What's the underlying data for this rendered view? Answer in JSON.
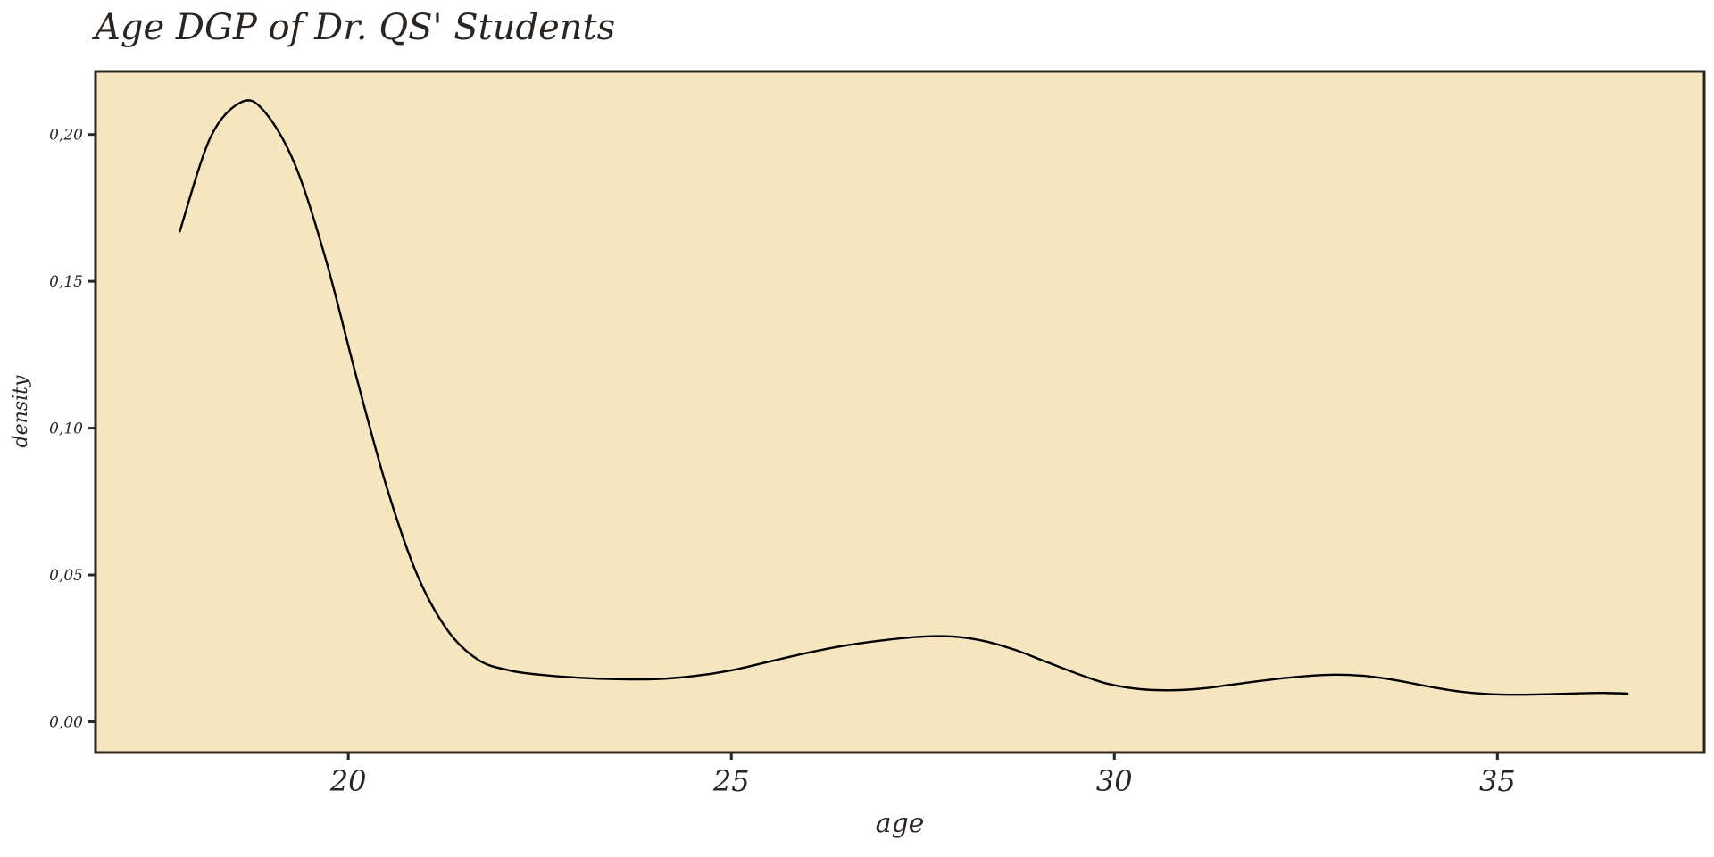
{
  "chart_data": {
    "type": "line",
    "title": "Age DGP of Dr. QS' Students",
    "xlabel": "age",
    "ylabel": "density",
    "xlim": [
      16.7,
      37.7
    ],
    "ylim": [
      -0.0105,
      0.2215
    ],
    "x_ticks": [
      20,
      25,
      30,
      35
    ],
    "x_tick_labels": [
      "20",
      "25",
      "30",
      "35"
    ],
    "y_ticks": [
      0.0,
      0.05,
      0.1,
      0.15,
      0.2
    ],
    "y_tick_labels": [
      "0,00",
      "0,05",
      "0,10",
      "0,15",
      "0,20"
    ],
    "grid": false,
    "legend": "none",
    "colors": {
      "panel_background": "#f6e6c0",
      "panel_border": "#2b2522",
      "line": "#000000",
      "text": "#2b2522"
    },
    "series": [
      {
        "x": [
          17.8,
          18.2,
          18.6,
          18.9,
          19.3,
          19.7,
          20.1,
          20.5,
          20.9,
          21.3,
          21.7,
          22.1,
          22.5,
          23.0,
          23.5,
          24.0,
          24.5,
          25.0,
          25.5,
          26.0,
          26.5,
          27.0,
          27.5,
          27.9,
          28.3,
          28.7,
          29.1,
          29.5,
          29.9,
          30.3,
          30.7,
          31.1,
          31.5,
          32.0,
          32.5,
          32.9,
          33.3,
          33.7,
          34.1,
          34.5,
          34.9,
          35.3,
          35.7,
          36.1,
          36.4,
          36.7
        ],
        "y": [
          0.167,
          0.199,
          0.211,
          0.208,
          0.19,
          0.158,
          0.118,
          0.08,
          0.05,
          0.031,
          0.021,
          0.0175,
          0.016,
          0.015,
          0.0145,
          0.0145,
          0.0155,
          0.0175,
          0.0205,
          0.0235,
          0.026,
          0.0278,
          0.029,
          0.029,
          0.0275,
          0.0245,
          0.0205,
          0.0165,
          0.013,
          0.0112,
          0.0107,
          0.0112,
          0.0125,
          0.0142,
          0.0155,
          0.016,
          0.0155,
          0.014,
          0.012,
          0.0103,
          0.0094,
          0.0092,
          0.0094,
          0.0097,
          0.0098,
          0.0096
        ]
      }
    ]
  }
}
